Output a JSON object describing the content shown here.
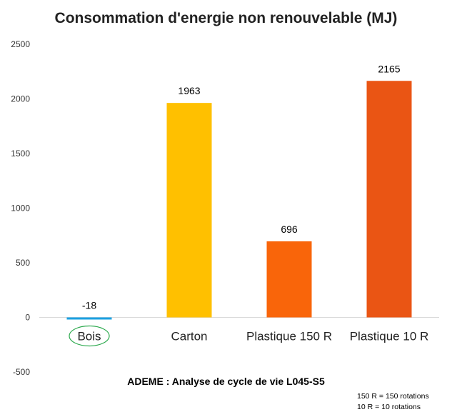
{
  "chart_data": {
    "type": "bar",
    "title": "Consommation d'energie non renouvelable (MJ)",
    "categories": [
      "Bois",
      "Carton",
      "Plastique 150 R",
      "Plastique 10 R"
    ],
    "values": [
      -18,
      1963,
      696,
      2165
    ],
    "data_labels": [
      "-18",
      "1963",
      "696",
      "2165"
    ],
    "colors": [
      "#1BA1E2",
      "#FFC000",
      "#F9650A",
      "#EA5514"
    ],
    "xlabel": "ADEME : Analyse de cycle de vie L045-S5",
    "ylabel": "",
    "ylim": [
      -500,
      2500
    ],
    "yticks": [
      -500,
      0,
      500,
      1000,
      1500,
      2000,
      2500
    ],
    "grid": false,
    "highlighted_category": "Bois",
    "highlight_color": "#2EAA4F",
    "notes": [
      "150 R = 150 rotations",
      "10 R = 10 rotations"
    ]
  }
}
